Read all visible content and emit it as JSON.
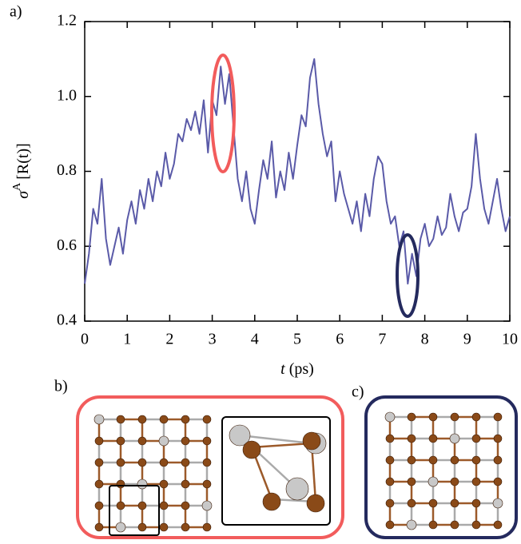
{
  "chart_data": {
    "type": "line",
    "panel_labels": [
      "a)",
      "b)",
      "c)"
    ],
    "xlabel": {
      "symbol": "t",
      "unit": "(ps)"
    },
    "ylabel": {
      "symbol": "σ",
      "superscript": "A",
      "argument": "[R(t)]"
    },
    "xlim": [
      0,
      10
    ],
    "xticks": [
      0,
      1,
      2,
      3,
      4,
      5,
      6,
      7,
      8,
      9,
      10
    ],
    "ylim": [
      0.4,
      1.2
    ],
    "yticks": [
      0.4,
      0.6,
      0.8,
      {
        "value": 1,
        "label": "1.0"
      },
      1.2
    ],
    "x": [
      0,
      0.1,
      0.2,
      0.3,
      0.4,
      0.5,
      0.6,
      0.7,
      0.8,
      0.9,
      1,
      1.1,
      1.2,
      1.3,
      1.4,
      1.5,
      1.6,
      1.7,
      1.8,
      1.9,
      2,
      2.1,
      2.2,
      2.3,
      2.4,
      2.5,
      2.6,
      2.7,
      2.8,
      2.9,
      3,
      3.1,
      3.2,
      3.3,
      3.4,
      3.5,
      3.6,
      3.7,
      3.8,
      3.9,
      4,
      4.1,
      4.2,
      4.3,
      4.4,
      4.5,
      4.6,
      4.7,
      4.8,
      4.9,
      5,
      5.1,
      5.2,
      5.3,
      5.4,
      5.5,
      5.6,
      5.7,
      5.8,
      5.9,
      6,
      6.1,
      6.2,
      6.3,
      6.4,
      6.5,
      6.6,
      6.7,
      6.8,
      6.9,
      7,
      7.1,
      7.2,
      7.3,
      7.4,
      7.5,
      7.6,
      7.7,
      7.8,
      7.9,
      8,
      8.1,
      8.2,
      8.3,
      8.4,
      8.5,
      8.6,
      8.7,
      8.8,
      8.9,
      9,
      9.1,
      9.2,
      9.3,
      9.4,
      9.5,
      9.6,
      9.7,
      9.8,
      9.9,
      10
    ],
    "series": [
      {
        "color": "#5a5aa8",
        "values": [
          0.5,
          0.58,
          0.7,
          0.66,
          0.78,
          0.62,
          0.55,
          0.6,
          0.65,
          0.58,
          0.67,
          0.72,
          0.66,
          0.75,
          0.7,
          0.78,
          0.72,
          0.8,
          0.76,
          0.85,
          0.78,
          0.82,
          0.9,
          0.88,
          0.94,
          0.91,
          0.96,
          0.9,
          0.99,
          0.85,
          0.99,
          0.95,
          1.08,
          0.98,
          1.06,
          0.92,
          0.78,
          0.72,
          0.8,
          0.7,
          0.66,
          0.75,
          0.83,
          0.78,
          0.88,
          0.73,
          0.8,
          0.75,
          0.85,
          0.78,
          0.87,
          0.95,
          0.92,
          1.05,
          1.1,
          0.98,
          0.9,
          0.84,
          0.88,
          0.72,
          0.8,
          0.74,
          0.7,
          0.66,
          0.72,
          0.64,
          0.74,
          0.68,
          0.78,
          0.84,
          0.82,
          0.72,
          0.66,
          0.68,
          0.6,
          0.64,
          0.5,
          0.58,
          0.52,
          0.62,
          0.66,
          0.6,
          0.62,
          0.68,
          0.63,
          0.65,
          0.74,
          0.68,
          0.64,
          0.69,
          0.7,
          0.76,
          0.9,
          0.78,
          0.7,
          0.66,
          0.72,
          0.78,
          0.7,
          0.64,
          0.68
        ]
      }
    ]
  }
}
